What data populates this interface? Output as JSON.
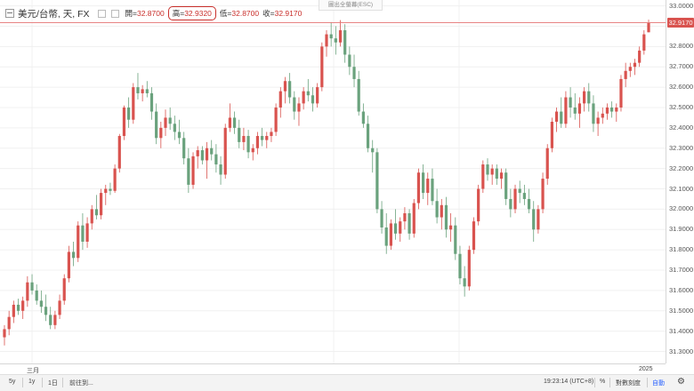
{
  "legend": {
    "symbol": "美元/台幣, 天, FX",
    "open_label": "開=",
    "open_value": "32.8700",
    "high_label": "高=",
    "high_value": "32.9320",
    "low_label": "低=",
    "low_value": "32.8700",
    "close_label": "收=",
    "close_value": "32.9170",
    "collapse_icon": "collapse-icon"
  },
  "tooltip": "圖出全螢幕(ESC)",
  "price_axis": {
    "ticks": [
      "33.0000",
      "32.9000",
      "32.8000",
      "32.7000",
      "32.6000",
      "32.5000",
      "32.4000",
      "32.3000",
      "32.2000",
      "32.1000",
      "32.0000",
      "31.9000",
      "31.8000",
      "31.7000",
      "31.6000",
      "31.5000",
      "31.4000",
      "31.3000"
    ],
    "last_price": "32.9170"
  },
  "time_axis": {
    "labels": [
      "三月",
      "2025"
    ]
  },
  "toolbar": {
    "left": [
      "5y",
      "1y",
      "1日",
      "前往到..."
    ],
    "time": "19:23:14 (UTC+8)",
    "percent": "%",
    "log": "對數刻度",
    "auto": "自動",
    "gear_icon": "gear-icon"
  },
  "colors": {
    "up": "#d9534f",
    "down": "#6aa27d",
    "highlight": "#c9302c"
  },
  "chart_data": {
    "type": "candlestick",
    "ylim": [
      31.25,
      33.02
    ],
    "last_price": 32.917,
    "series_note": "daily candles, open/high/low/close",
    "candles": [
      [
        31.37,
        31.43,
        31.33,
        31.41
      ],
      [
        31.41,
        31.5,
        31.38,
        31.47
      ],
      [
        31.47,
        31.55,
        31.44,
        31.53
      ],
      [
        31.53,
        31.56,
        31.48,
        31.5
      ],
      [
        31.5,
        31.57,
        31.46,
        31.55
      ],
      [
        31.55,
        31.67,
        31.52,
        31.64
      ],
      [
        31.64,
        31.68,
        31.58,
        31.6
      ],
      [
        31.6,
        31.63,
        31.53,
        31.55
      ],
      [
        31.55,
        31.6,
        31.49,
        31.52
      ],
      [
        31.52,
        31.58,
        31.45,
        31.48
      ],
      [
        31.48,
        31.52,
        31.41,
        31.43
      ],
      [
        31.43,
        31.5,
        31.41,
        31.48
      ],
      [
        31.48,
        31.58,
        31.46,
        31.55
      ],
      [
        31.55,
        31.68,
        31.53,
        31.66
      ],
      [
        31.66,
        31.82,
        31.64,
        31.79
      ],
      [
        31.79,
        31.84,
        31.72,
        31.76
      ],
      [
        31.76,
        31.94,
        31.74,
        31.92
      ],
      [
        31.92,
        31.98,
        31.8,
        31.84
      ],
      [
        31.84,
        31.96,
        31.81,
        31.93
      ],
      [
        31.93,
        32.02,
        31.9,
        32.0
      ],
      [
        32.0,
        32.07,
        31.95,
        31.97
      ],
      [
        31.97,
        32.1,
        31.95,
        32.08
      ],
      [
        32.08,
        32.12,
        32.02,
        32.1
      ],
      [
        32.1,
        32.13,
        32.07,
        32.09
      ],
      [
        32.09,
        32.22,
        32.08,
        32.2
      ],
      [
        32.2,
        32.37,
        32.18,
        32.36
      ],
      [
        32.36,
        32.51,
        32.34,
        32.5
      ],
      [
        32.5,
        32.55,
        32.4,
        32.44
      ],
      [
        32.44,
        32.62,
        32.42,
        32.6
      ],
      [
        32.6,
        32.67,
        32.54,
        32.57
      ],
      [
        32.57,
        32.61,
        32.53,
        32.59
      ],
      [
        32.59,
        32.63,
        32.55,
        32.57
      ],
      [
        32.57,
        32.6,
        32.44,
        32.48
      ],
      [
        32.48,
        32.52,
        32.32,
        32.35
      ],
      [
        32.35,
        32.43,
        32.3,
        32.4
      ],
      [
        32.4,
        32.49,
        32.36,
        32.45
      ],
      [
        32.45,
        32.5,
        32.39,
        32.42
      ],
      [
        32.42,
        32.46,
        32.34,
        32.38
      ],
      [
        32.38,
        32.44,
        32.32,
        32.35
      ],
      [
        32.35,
        32.38,
        32.22,
        32.25
      ],
      [
        32.25,
        32.3,
        32.08,
        32.12
      ],
      [
        32.12,
        32.28,
        32.1,
        32.26
      ],
      [
        32.26,
        32.31,
        32.2,
        32.29
      ],
      [
        32.29,
        32.31,
        32.22,
        32.24
      ],
      [
        32.24,
        32.33,
        32.15,
        32.3
      ],
      [
        32.3,
        32.34,
        32.24,
        32.27
      ],
      [
        32.27,
        32.32,
        32.18,
        32.22
      ],
      [
        32.22,
        32.26,
        32.12,
        32.17
      ],
      [
        32.17,
        32.42,
        32.15,
        32.4
      ],
      [
        32.4,
        32.52,
        32.38,
        32.45
      ],
      [
        32.45,
        32.48,
        32.37,
        32.4
      ],
      [
        32.4,
        32.44,
        32.3,
        32.33
      ],
      [
        32.33,
        32.4,
        32.29,
        32.36
      ],
      [
        32.36,
        32.39,
        32.25,
        32.28
      ],
      [
        32.28,
        32.32,
        32.24,
        32.3
      ],
      [
        32.3,
        32.38,
        32.27,
        32.36
      ],
      [
        32.36,
        32.4,
        32.31,
        32.34
      ],
      [
        32.34,
        32.38,
        32.3,
        32.36
      ],
      [
        32.36,
        32.4,
        32.33,
        32.38
      ],
      [
        32.38,
        32.52,
        32.36,
        32.5
      ],
      [
        32.5,
        32.6,
        32.45,
        32.58
      ],
      [
        32.58,
        32.65,
        32.52,
        32.63
      ],
      [
        32.63,
        32.67,
        32.52,
        32.55
      ],
      [
        32.55,
        32.58,
        32.44,
        32.48
      ],
      [
        32.48,
        32.55,
        32.41,
        32.52
      ],
      [
        32.52,
        32.6,
        32.49,
        32.58
      ],
      [
        32.58,
        32.64,
        32.53,
        32.56
      ],
      [
        32.56,
        32.6,
        32.48,
        32.52
      ],
      [
        32.52,
        32.62,
        32.5,
        32.6
      ],
      [
        32.6,
        32.82,
        32.58,
        32.8
      ],
      [
        32.8,
        32.88,
        32.75,
        32.86
      ],
      [
        32.86,
        32.92,
        32.8,
        32.84
      ],
      [
        32.84,
        32.9,
        32.76,
        32.82
      ],
      [
        32.82,
        32.93,
        32.8,
        32.88
      ],
      [
        32.88,
        32.91,
        32.72,
        32.76
      ],
      [
        32.76,
        32.8,
        32.66,
        32.7
      ],
      [
        32.7,
        32.76,
        32.6,
        32.64
      ],
      [
        32.64,
        32.68,
        32.46,
        32.48
      ],
      [
        32.48,
        32.52,
        32.4,
        32.42
      ],
      [
        32.42,
        32.46,
        32.28,
        32.3
      ],
      [
        32.3,
        32.34,
        32.18,
        32.28
      ],
      [
        32.28,
        32.3,
        31.98,
        32.0
      ],
      [
        32.0,
        32.04,
        31.88,
        31.91
      ],
      [
        31.91,
        31.98,
        31.78,
        31.82
      ],
      [
        31.82,
        31.95,
        31.8,
        31.93
      ],
      [
        31.93,
        32.0,
        31.85,
        31.88
      ],
      [
        31.88,
        31.96,
        31.84,
        31.94
      ],
      [
        31.94,
        32.01,
        31.9,
        31.98
      ],
      [
        31.98,
        32.0,
        31.85,
        31.88
      ],
      [
        31.88,
        32.05,
        31.86,
        32.03
      ],
      [
        32.03,
        32.2,
        32.0,
        32.18
      ],
      [
        32.18,
        32.22,
        32.05,
        32.08
      ],
      [
        32.08,
        32.18,
        32.02,
        32.15
      ],
      [
        32.15,
        32.2,
        32.02,
        32.04
      ],
      [
        32.04,
        32.1,
        31.93,
        31.96
      ],
      [
        31.96,
        32.05,
        31.9,
        32.02
      ],
      [
        32.02,
        32.06,
        31.86,
        31.9
      ],
      [
        31.9,
        31.98,
        31.84,
        31.92
      ],
      [
        31.92,
        31.96,
        31.75,
        31.78
      ],
      [
        31.78,
        31.82,
        31.63,
        31.66
      ],
      [
        31.66,
        31.72,
        31.57,
        31.62
      ],
      [
        31.62,
        31.82,
        31.6,
        31.8
      ],
      [
        31.8,
        31.96,
        31.78,
        31.94
      ],
      [
        31.94,
        32.12,
        31.92,
        32.1
      ],
      [
        32.1,
        32.24,
        32.08,
        32.22
      ],
      [
        32.22,
        32.25,
        32.14,
        32.17
      ],
      [
        32.17,
        32.22,
        32.12,
        32.2
      ],
      [
        32.2,
        32.22,
        32.12,
        32.15
      ],
      [
        32.15,
        32.2,
        32.1,
        32.18
      ],
      [
        32.18,
        32.2,
        32.02,
        32.05
      ],
      [
        32.05,
        32.1,
        31.96,
        32.0
      ],
      [
        32.0,
        32.12,
        31.98,
        32.1
      ],
      [
        32.1,
        32.14,
        32.03,
        32.08
      ],
      [
        32.08,
        32.12,
        32.02,
        32.05
      ],
      [
        32.05,
        32.1,
        31.98,
        32.0
      ],
      [
        32.0,
        32.04,
        31.84,
        31.9
      ],
      [
        31.9,
        32.02,
        31.88,
        32.0
      ],
      [
        32.0,
        32.18,
        31.98,
        32.15
      ],
      [
        32.15,
        32.32,
        32.12,
        32.3
      ],
      [
        32.3,
        32.45,
        32.28,
        32.43
      ],
      [
        32.43,
        32.5,
        32.38,
        32.48
      ],
      [
        32.48,
        32.55,
        32.4,
        32.42
      ],
      [
        32.42,
        32.58,
        32.4,
        32.55
      ],
      [
        32.55,
        32.6,
        32.45,
        32.5
      ],
      [
        32.5,
        32.57,
        32.44,
        32.47
      ],
      [
        32.47,
        32.55,
        32.4,
        32.52
      ],
      [
        32.52,
        32.6,
        32.48,
        32.58
      ],
      [
        32.58,
        32.62,
        32.48,
        32.52
      ],
      [
        32.52,
        32.56,
        32.38,
        32.42
      ],
      [
        32.42,
        32.48,
        32.36,
        32.45
      ],
      [
        32.45,
        32.5,
        32.42,
        32.47
      ],
      [
        32.47,
        32.52,
        32.44,
        32.5
      ],
      [
        32.5,
        32.53,
        32.45,
        32.48
      ],
      [
        32.48,
        32.52,
        32.43,
        32.5
      ],
      [
        32.5,
        32.66,
        32.48,
        32.64
      ],
      [
        32.64,
        32.72,
        32.6,
        32.68
      ],
      [
        32.68,
        32.72,
        32.65,
        32.7
      ],
      [
        32.7,
        32.74,
        32.66,
        32.72
      ],
      [
        32.72,
        32.8,
        32.7,
        32.78
      ],
      [
        32.78,
        32.88,
        32.76,
        32.86
      ],
      [
        32.87,
        32.932,
        32.87,
        32.917
      ]
    ]
  }
}
